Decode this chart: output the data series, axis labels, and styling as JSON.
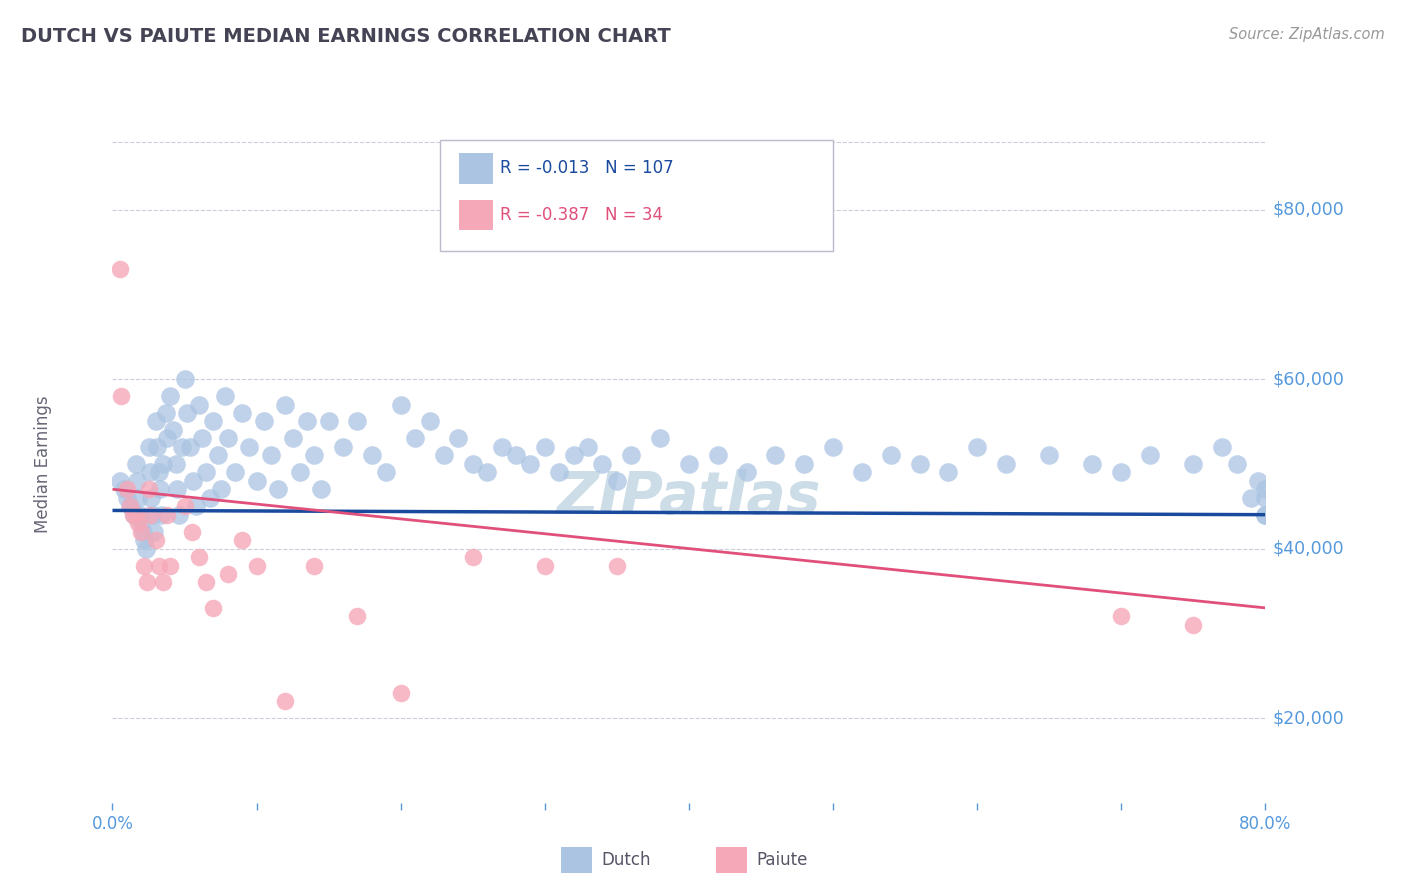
{
  "title": "DUTCH VS PAIUTE MEDIAN EARNINGS CORRELATION CHART",
  "source_text": "Source: ZipAtlas.com",
  "ylabel": "Median Earnings",
  "xlim": [
    0.0,
    0.8
  ],
  "ylim": [
    10000,
    90000
  ],
  "yticks": [
    20000,
    40000,
    60000,
    80000
  ],
  "ytick_labels": [
    "$20,000",
    "$40,000",
    "$60,000",
    "$80,000"
  ],
  "xticks": [
    0.0,
    0.1,
    0.2,
    0.3,
    0.4,
    0.5,
    0.6,
    0.7,
    0.8
  ],
  "xtick_labels": [
    "0.0%",
    "",
    "",
    "",
    "",
    "",
    "",
    "",
    "80.0%"
  ],
  "dutch_R": -0.013,
  "dutch_N": 107,
  "paiute_R": -0.387,
  "paiute_N": 34,
  "dutch_color": "#aac4e2",
  "paiute_color": "#f5a8b8",
  "dutch_line_color": "#1a4a9e",
  "paiute_line_color": "#e0507a",
  "ytick_color": "#5599dd",
  "title_color": "#444455",
  "background_color": "#ffffff",
  "grid_color": "#ccccdd",
  "watermark_text": "ZIPatlas",
  "watermark_color": "#ccdde8",
  "dutch_line_y0": 44500,
  "dutch_line_y1": 44000,
  "paiute_line_y0": 47000,
  "paiute_line_y1": 33000,
  "dutch_scatter_x": [
    0.005,
    0.008,
    0.01,
    0.012,
    0.015,
    0.016,
    0.017,
    0.018,
    0.019,
    0.02,
    0.021,
    0.022,
    0.023,
    0.025,
    0.026,
    0.027,
    0.028,
    0.029,
    0.03,
    0.031,
    0.032,
    0.033,
    0.034,
    0.035,
    0.037,
    0.038,
    0.04,
    0.042,
    0.044,
    0.045,
    0.046,
    0.048,
    0.05,
    0.052,
    0.054,
    0.056,
    0.058,
    0.06,
    0.062,
    0.065,
    0.068,
    0.07,
    0.073,
    0.075,
    0.078,
    0.08,
    0.085,
    0.09,
    0.095,
    0.1,
    0.105,
    0.11,
    0.115,
    0.12,
    0.125,
    0.13,
    0.135,
    0.14,
    0.145,
    0.15,
    0.16,
    0.17,
    0.18,
    0.19,
    0.2,
    0.21,
    0.22,
    0.23,
    0.24,
    0.25,
    0.26,
    0.27,
    0.28,
    0.29,
    0.3,
    0.31,
    0.32,
    0.33,
    0.34,
    0.35,
    0.36,
    0.38,
    0.4,
    0.42,
    0.44,
    0.46,
    0.48,
    0.5,
    0.52,
    0.54,
    0.56,
    0.58,
    0.6,
    0.62,
    0.65,
    0.68,
    0.7,
    0.72,
    0.75,
    0.77,
    0.78,
    0.79,
    0.795,
    0.8,
    0.8,
    0.8,
    0.8
  ],
  "dutch_scatter_y": [
    48000,
    47000,
    46000,
    45000,
    44000,
    50000,
    48000,
    46000,
    44000,
    43000,
    42000,
    41000,
    40000,
    52000,
    49000,
    46000,
    44000,
    42000,
    55000,
    52000,
    49000,
    47000,
    44000,
    50000,
    56000,
    53000,
    58000,
    54000,
    50000,
    47000,
    44000,
    52000,
    60000,
    56000,
    52000,
    48000,
    45000,
    57000,
    53000,
    49000,
    46000,
    55000,
    51000,
    47000,
    58000,
    53000,
    49000,
    56000,
    52000,
    48000,
    55000,
    51000,
    47000,
    57000,
    53000,
    49000,
    55000,
    51000,
    47000,
    55000,
    52000,
    55000,
    51000,
    49000,
    57000,
    53000,
    55000,
    51000,
    53000,
    50000,
    49000,
    52000,
    51000,
    50000,
    52000,
    49000,
    51000,
    52000,
    50000,
    48000,
    51000,
    53000,
    50000,
    51000,
    49000,
    51000,
    50000,
    52000,
    49000,
    51000,
    50000,
    49000,
    52000,
    50000,
    51000,
    50000,
    49000,
    51000,
    50000,
    52000,
    50000,
    46000,
    48000,
    44000,
    44000,
    47000,
    46000
  ],
  "paiute_scatter_x": [
    0.005,
    0.006,
    0.01,
    0.012,
    0.014,
    0.016,
    0.018,
    0.02,
    0.022,
    0.024,
    0.025,
    0.026,
    0.03,
    0.032,
    0.035,
    0.038,
    0.04,
    0.05,
    0.055,
    0.06,
    0.065,
    0.07,
    0.08,
    0.09,
    0.1,
    0.12,
    0.14,
    0.17,
    0.2,
    0.25,
    0.3,
    0.35,
    0.7,
    0.75
  ],
  "paiute_scatter_y": [
    73000,
    58000,
    47000,
    45000,
    44000,
    44000,
    43000,
    42000,
    38000,
    36000,
    47000,
    44000,
    41000,
    38000,
    36000,
    44000,
    38000,
    45000,
    42000,
    39000,
    36000,
    33000,
    37000,
    41000,
    38000,
    22000,
    38000,
    32000,
    23000,
    39000,
    38000,
    38000,
    32000,
    31000
  ]
}
